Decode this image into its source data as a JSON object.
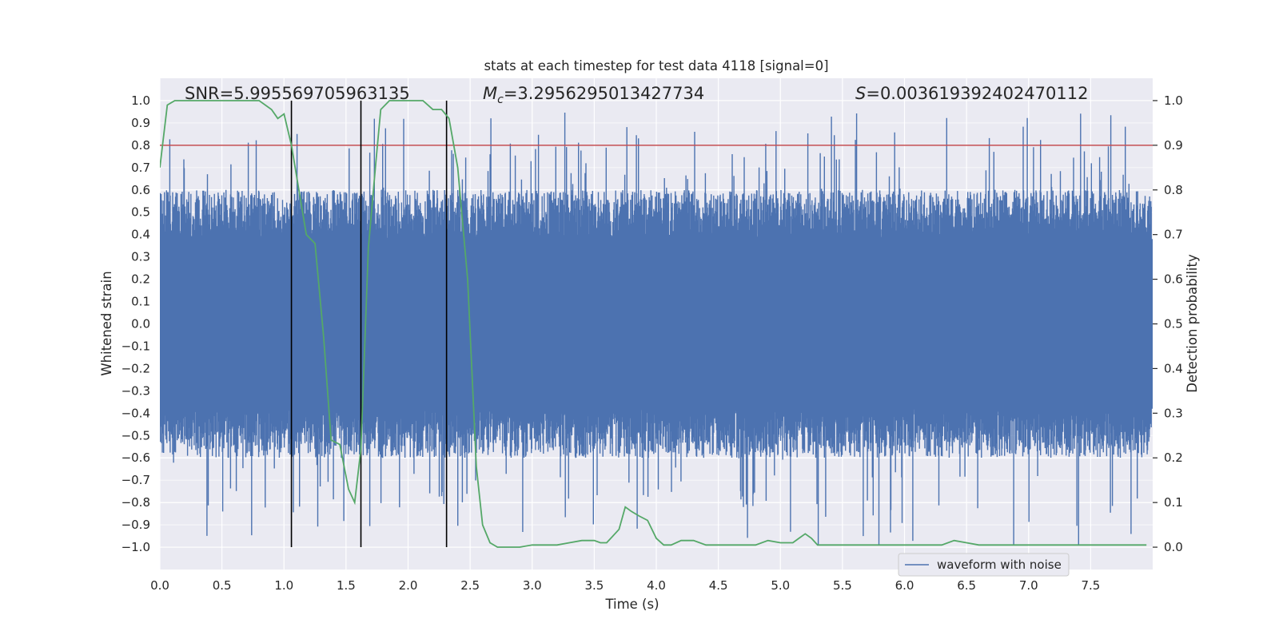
{
  "chart_data": {
    "type": "line",
    "title": "stats at each timestep for test data 4118 [signal=0]",
    "xlabel": "Time (s)",
    "ylabel": "Whitened strain",
    "y2label": "Detection probability",
    "xlim": [
      0.0,
      8.0
    ],
    "ylim": [
      -1.1,
      1.1
    ],
    "y2lim": [
      -0.05,
      1.05
    ],
    "xticks": [
      "0.0",
      "0.5",
      "1.0",
      "1.5",
      "2.0",
      "2.5",
      "3.0",
      "3.5",
      "4.0",
      "4.5",
      "5.0",
      "5.5",
      "6.0",
      "6.5",
      "7.0",
      "7.5"
    ],
    "yticks": [
      "1.0",
      "0.9",
      "0.8",
      "0.7",
      "0.6",
      "0.5",
      "0.4",
      "0.3",
      "0.2",
      "0.1",
      "0.0",
      "−0.1",
      "−0.2",
      "−0.3",
      "−0.4",
      "−0.5",
      "−0.6",
      "−0.7",
      "−0.8",
      "−0.9",
      "−1.0"
    ],
    "y2ticks": [
      "1.0",
      "0.9",
      "0.8",
      "0.7",
      "0.6",
      "0.5",
      "0.4",
      "0.3",
      "0.2",
      "0.1",
      "0.0"
    ],
    "grid": true,
    "legend_position": "lower-right",
    "annotations": {
      "snr": "SNR=5.995569705963135",
      "mc_symbol": "M",
      "mc_sub": "c",
      "mc_value": "=3.2956295013427734",
      "s_symbol": "S",
      "s_value": "=0.003619392402470112"
    },
    "threshold": {
      "value": 0.9,
      "axis": "y2",
      "color": "#c44e52"
    },
    "vertical_lines": [
      1.06,
      1.62,
      2.31
    ],
    "series": [
      {
        "name": "waveform with noise",
        "color": "#4c72b0",
        "kind": "noise-band",
        "core_band": [
          -0.38,
          0.38
        ],
        "peak_envelope": [
          -0.99,
          0.99
        ]
      },
      {
        "kind": "line",
        "axis": "y2",
        "color": "#55a868",
        "x": [
          0.0,
          0.06,
          0.12,
          0.2,
          0.3,
          0.4,
          0.5,
          0.6,
          0.7,
          0.8,
          0.9,
          0.95,
          1.0,
          1.06,
          1.12,
          1.18,
          1.25,
          1.32,
          1.38,
          1.45,
          1.52,
          1.57,
          1.62,
          1.68,
          1.74,
          1.78,
          1.85,
          1.95,
          2.05,
          2.12,
          2.2,
          2.27,
          2.33,
          2.4,
          2.48,
          2.55,
          2.6,
          2.66,
          2.72,
          2.8,
          2.9,
          3.0,
          3.1,
          3.2,
          3.3,
          3.4,
          3.5,
          3.55,
          3.6,
          3.7,
          3.75,
          3.8,
          3.86,
          3.93,
          4.0,
          4.06,
          4.12,
          4.2,
          4.3,
          4.4,
          4.5,
          4.6,
          4.7,
          4.8,
          4.9,
          5.0,
          5.1,
          5.15,
          5.2,
          5.25,
          5.3,
          5.4,
          5.5,
          5.6,
          5.7,
          5.8,
          5.9,
          6.0,
          6.1,
          6.2,
          6.3,
          6.4,
          6.5,
          6.6,
          6.7,
          6.8,
          6.9,
          7.0,
          7.1,
          7.2,
          7.3,
          7.4,
          7.5,
          7.6,
          7.7,
          7.8,
          7.95
        ],
        "y": [
          0.85,
          0.99,
          1.0,
          1.0,
          1.0,
          1.0,
          1.0,
          1.0,
          1.0,
          1.0,
          0.98,
          0.96,
          0.97,
          0.9,
          0.8,
          0.7,
          0.68,
          0.47,
          0.24,
          0.23,
          0.13,
          0.1,
          0.22,
          0.67,
          0.86,
          0.98,
          1.0,
          1.0,
          1.0,
          1.0,
          0.98,
          0.98,
          0.96,
          0.85,
          0.6,
          0.18,
          0.05,
          0.01,
          0.0,
          0.0,
          0.0,
          0.005,
          0.005,
          0.005,
          0.01,
          0.015,
          0.015,
          0.01,
          0.01,
          0.04,
          0.09,
          0.08,
          0.07,
          0.06,
          0.02,
          0.005,
          0.005,
          0.015,
          0.015,
          0.005,
          0.005,
          0.005,
          0.005,
          0.005,
          0.015,
          0.01,
          0.01,
          0.02,
          0.03,
          0.02,
          0.005,
          0.005,
          0.005,
          0.005,
          0.005,
          0.005,
          0.005,
          0.005,
          0.005,
          0.005,
          0.005,
          0.015,
          0.01,
          0.005,
          0.005,
          0.005,
          0.005,
          0.005,
          0.005,
          0.005,
          0.005,
          0.005,
          0.005,
          0.005,
          0.005,
          0.005,
          0.005
        ]
      }
    ]
  }
}
